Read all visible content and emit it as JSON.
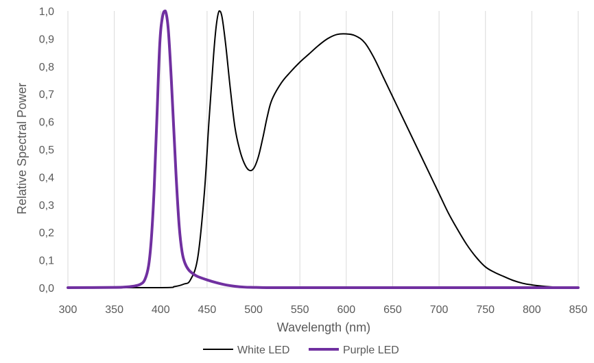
{
  "chart_data": {
    "type": "line",
    "title": "",
    "xlabel": "Wavelength (nm)",
    "ylabel": "Relative Spectral Power",
    "xlim": [
      300,
      850
    ],
    "ylim": [
      0,
      1
    ],
    "x_ticks": [
      300,
      350,
      400,
      450,
      500,
      550,
      600,
      650,
      700,
      750,
      800,
      850
    ],
    "x_tick_labels": [
      "300",
      "350",
      "400",
      "450",
      "500",
      "550",
      "600",
      "650",
      "700",
      "750",
      "800",
      "850"
    ],
    "y_ticks": [
      0,
      0.1,
      0.2,
      0.3,
      0.4,
      0.5,
      0.6,
      0.7,
      0.8,
      0.9,
      1.0
    ],
    "y_tick_labels": [
      "0,0",
      "0,1",
      "0,2",
      "0,3",
      "0,4",
      "0,5",
      "0,6",
      "0,7",
      "0,8",
      "0,9",
      "1,0"
    ],
    "grid": "vertical",
    "legend_position": "bottom",
    "series": [
      {
        "name": "White LED",
        "color": "#000000",
        "x": [
          300,
          400,
          415,
          425,
          432,
          440,
          447,
          452,
          457,
          460,
          463,
          466,
          470,
          475,
          480,
          485,
          490,
          495,
          500,
          505,
          510,
          515,
          520,
          530,
          540,
          550,
          560,
          570,
          580,
          590,
          600,
          610,
          620,
          630,
          640,
          650,
          660,
          670,
          680,
          690,
          700,
          710,
          720,
          730,
          740,
          750,
          760,
          770,
          780,
          790,
          800,
          810,
          820,
          830,
          840,
          850
        ],
        "y": [
          0,
          0,
          0.004,
          0.013,
          0.028,
          0.11,
          0.34,
          0.6,
          0.84,
          0.95,
          1.0,
          0.98,
          0.88,
          0.72,
          0.58,
          0.5,
          0.45,
          0.425,
          0.43,
          0.47,
          0.54,
          0.62,
          0.68,
          0.74,
          0.78,
          0.815,
          0.845,
          0.875,
          0.9,
          0.915,
          0.917,
          0.91,
          0.885,
          0.83,
          0.76,
          0.69,
          0.62,
          0.55,
          0.48,
          0.41,
          0.34,
          0.27,
          0.21,
          0.155,
          0.11,
          0.075,
          0.055,
          0.04,
          0.026,
          0.016,
          0.01,
          0.006,
          0.003,
          0.001,
          0,
          0
        ]
      },
      {
        "name": "Purple LED",
        "color": "#7030a0",
        "x": [
          300,
          350,
          360,
          370,
          378,
          383,
          387,
          390,
          393,
          396,
          399,
          402,
          405,
          408,
          411,
          414,
          417,
          420,
          423,
          426,
          430,
          435,
          440,
          450,
          460,
          470,
          480,
          490,
          500,
          520,
          550,
          600,
          700,
          800,
          850
        ],
        "y": [
          0,
          0.001,
          0.002,
          0.005,
          0.012,
          0.03,
          0.08,
          0.18,
          0.36,
          0.62,
          0.88,
          0.98,
          1.0,
          0.94,
          0.78,
          0.58,
          0.38,
          0.22,
          0.13,
          0.09,
          0.065,
          0.05,
          0.04,
          0.028,
          0.018,
          0.01,
          0.005,
          0.002,
          0.001,
          0,
          0,
          0,
          0,
          0,
          0
        ]
      }
    ]
  }
}
